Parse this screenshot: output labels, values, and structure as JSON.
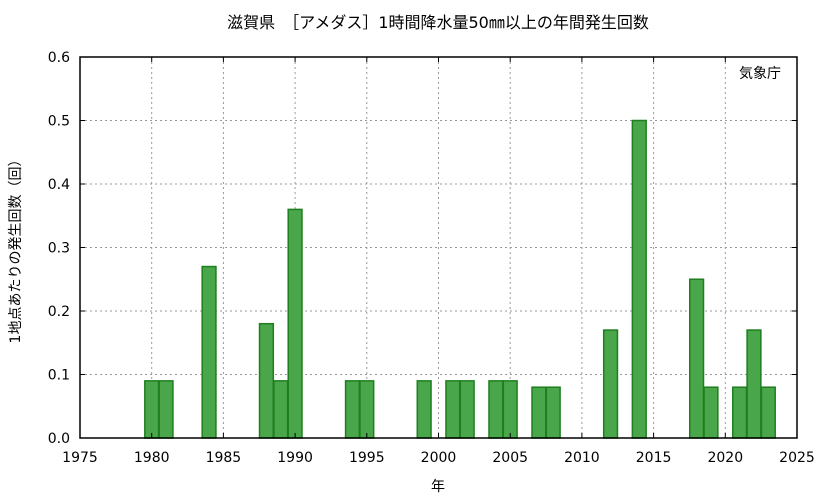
{
  "chart_data": {
    "type": "bar",
    "title": "滋賀県　［アメダス］1時間降水量50㎜以上の年間発生回数",
    "xlabel": "年",
    "ylabel": "1地点あたりの発生回数（回）",
    "annotation": "気象庁",
    "xlim": [
      1975,
      2025
    ],
    "ylim": [
      0,
      0.6
    ],
    "x_ticks": [
      1975,
      1980,
      1985,
      1990,
      1995,
      2000,
      2005,
      2010,
      2015,
      2020,
      2025
    ],
    "y_ticks": [
      0.0,
      0.1,
      0.2,
      0.3,
      0.4,
      0.5,
      0.6
    ],
    "y_tick_labels": [
      "0.0",
      "0.1",
      "0.2",
      "0.3",
      "0.4",
      "0.5",
      "0.6"
    ],
    "grid": true,
    "colors": {
      "bar_fill": "#4aa64a",
      "bar_stroke": "#1e7f1e"
    },
    "x": [
      1980,
      1981,
      1984,
      1988,
      1989,
      1990,
      1994,
      1995,
      1999,
      2001,
      2002,
      2004,
      2005,
      2007,
      2008,
      2012,
      2014,
      2018,
      2019,
      2021,
      2022,
      2023
    ],
    "values": [
      0.09,
      0.09,
      0.27,
      0.18,
      0.09,
      0.36,
      0.09,
      0.09,
      0.09,
      0.09,
      0.09,
      0.09,
      0.09,
      0.08,
      0.08,
      0.17,
      0.5,
      0.25,
      0.08,
      0.08,
      0.17,
      0.08
    ]
  }
}
